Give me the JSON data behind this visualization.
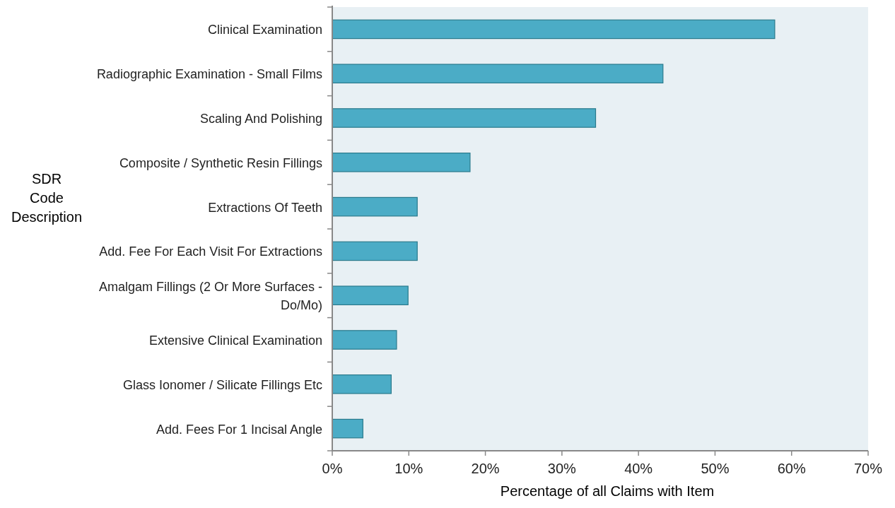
{
  "chart_data": {
    "type": "bar",
    "orientation": "horizontal",
    "xlabel": "Percentage of all  Claims with Item",
    "ylabel": "SDR Code Description",
    "categories": [
      "Clinical Examination",
      "Radiographic Examination - Small Films",
      "Scaling And Polishing",
      "Composite / Synthetic Resin Fillings",
      "Extractions Of Teeth",
      "Add. Fee For Each Visit For Extractions",
      "Amalgam Fillings (2 Or More Surfaces - Do/Mo)",
      "Extensive Clinical Examination",
      "Glass Ionomer / Silicate Fillings Etc",
      "Add. Fees For 1 Incisal Angle"
    ],
    "values": [
      57.8,
      43.2,
      34.4,
      18.0,
      11.1,
      11.1,
      9.9,
      8.4,
      7.7,
      4.0
    ],
    "color": "#4bacc6",
    "xlim": [
      0,
      70
    ],
    "xticks": [
      {
        "value": 0,
        "label": "0%"
      },
      {
        "value": 10,
        "label": "10%"
      },
      {
        "value": 20,
        "label": "20%"
      },
      {
        "value": 30,
        "label": "30%"
      },
      {
        "value": 40,
        "label": "40%"
      },
      {
        "value": 50,
        "label": "50%"
      },
      {
        "value": 60,
        "label": "60%"
      },
      {
        "value": 70,
        "label": "70%"
      }
    ],
    "grid": false
  }
}
